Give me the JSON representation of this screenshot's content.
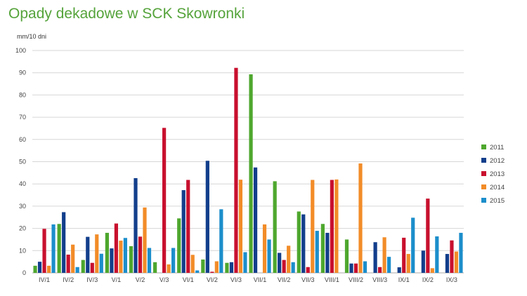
{
  "chart_data": {
    "type": "bar",
    "title": "Opady dekadowe w SCK Skowronki",
    "unit_label": "mm/10 dni",
    "xlabel": "",
    "ylabel": "",
    "ylim": [
      0,
      100
    ],
    "yticks": [
      0,
      10,
      20,
      30,
      40,
      50,
      60,
      70,
      80,
      90,
      100
    ],
    "grid": true,
    "legend_position": "right",
    "categories": [
      "IV/1",
      "IV/2",
      "IV/3",
      "V/1",
      "V/2",
      "V/3",
      "VI/1",
      "VI/2",
      "VI/3",
      "VII/1",
      "VII/2",
      "VII/3",
      "VIII/1",
      "VIII/2",
      "VIII/3",
      "IX/1",
      "IX/2",
      "IX/3"
    ],
    "series": [
      {
        "name": "2011",
        "color": "#4ea72e",
        "values": [
          3.2,
          22,
          5.8,
          18,
          12,
          4.8,
          24.5,
          6,
          4.5,
          89.3,
          41.2,
          27.6,
          22,
          15,
          0,
          0,
          0,
          0
        ]
      },
      {
        "name": "2012",
        "color": "#123e8b",
        "values": [
          5,
          27.3,
          16.2,
          11,
          42.6,
          0,
          37.2,
          50.4,
          4.8,
          47.4,
          9,
          26.3,
          18,
          4.2,
          13.8,
          2.5,
          10,
          8.5
        ]
      },
      {
        "name": "2013",
        "color": "#c8102e",
        "values": [
          19.8,
          8.2,
          4.5,
          22.2,
          16.3,
          65.2,
          41.8,
          0.5,
          92.2,
          0,
          5.8,
          2.6,
          41.8,
          4.2,
          2.6,
          15.8,
          33.4,
          14.6
        ]
      },
      {
        "name": "2014",
        "color": "#f28c28",
        "values": [
          3.2,
          12.7,
          17.3,
          14.5,
          29.4,
          3.8,
          8.1,
          5.2,
          41.9,
          21.8,
          12.2,
          41.8,
          42,
          49.2,
          16,
          8.5,
          2.1,
          9.6
        ]
      },
      {
        "name": "2015",
        "color": "#1c8ecb",
        "values": [
          21.8,
          2.6,
          8.6,
          15.7,
          11.2,
          11.2,
          1.1,
          28.6,
          9.3,
          15,
          4.8,
          18.9,
          0,
          5.2,
          7.2,
          24.8,
          16.4,
          18
        ]
      }
    ]
  }
}
